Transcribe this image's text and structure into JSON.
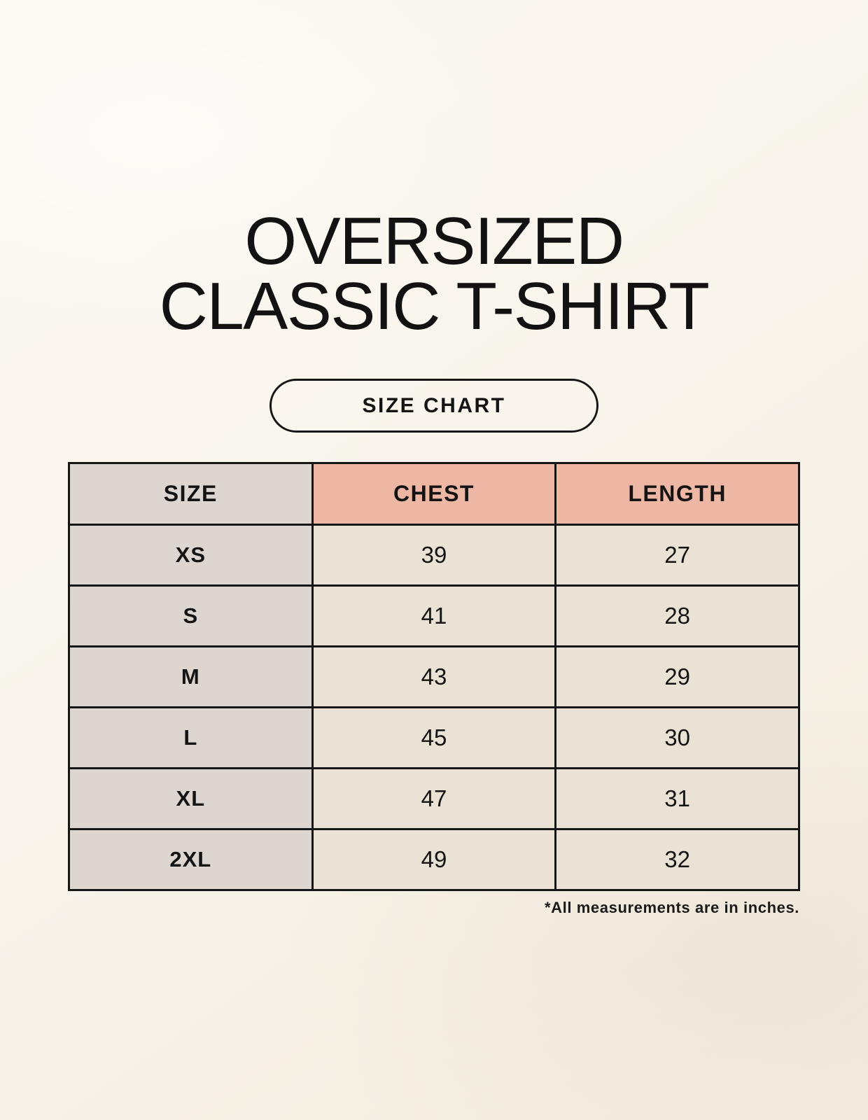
{
  "page": {
    "title_line1": "OVERSIZED",
    "title_line2": "CLASSIC T-SHIRT",
    "badge_label": "SIZE CHART",
    "footnote": "*All measurements are in inches."
  },
  "colors": {
    "background": "#f8f4eb",
    "header_accent_pink": "#edb7a4",
    "size_column_gray": "#dcd5d0",
    "value_cell_beige": "#e9e2d5",
    "table_border": "#161616",
    "text": "#141414"
  },
  "table": {
    "headers": {
      "size": "SIZE",
      "chest": "CHEST",
      "length": "LENGTH"
    },
    "rows": [
      {
        "size": "XS",
        "chest": "39",
        "length": "27"
      },
      {
        "size": "S",
        "chest": "41",
        "length": "28"
      },
      {
        "size": "M",
        "chest": "43",
        "length": "29"
      },
      {
        "size": "L",
        "chest": "45",
        "length": "30"
      },
      {
        "size": "XL",
        "chest": "47",
        "length": "31"
      },
      {
        "size": "2XL",
        "chest": "49",
        "length": "32"
      }
    ]
  },
  "chart_data": {
    "type": "table",
    "title": "OVERSIZED CLASSIC T-SHIRT",
    "subtitle": "SIZE CHART",
    "columns": [
      "SIZE",
      "CHEST",
      "LENGTH"
    ],
    "rows": [
      [
        "XS",
        39,
        27
      ],
      [
        "S",
        41,
        28
      ],
      [
        "M",
        43,
        29
      ],
      [
        "L",
        45,
        30
      ],
      [
        "XL",
        47,
        31
      ],
      [
        "2XL",
        49,
        32
      ]
    ],
    "units": "inches",
    "note": "*All measurements are in inches."
  }
}
